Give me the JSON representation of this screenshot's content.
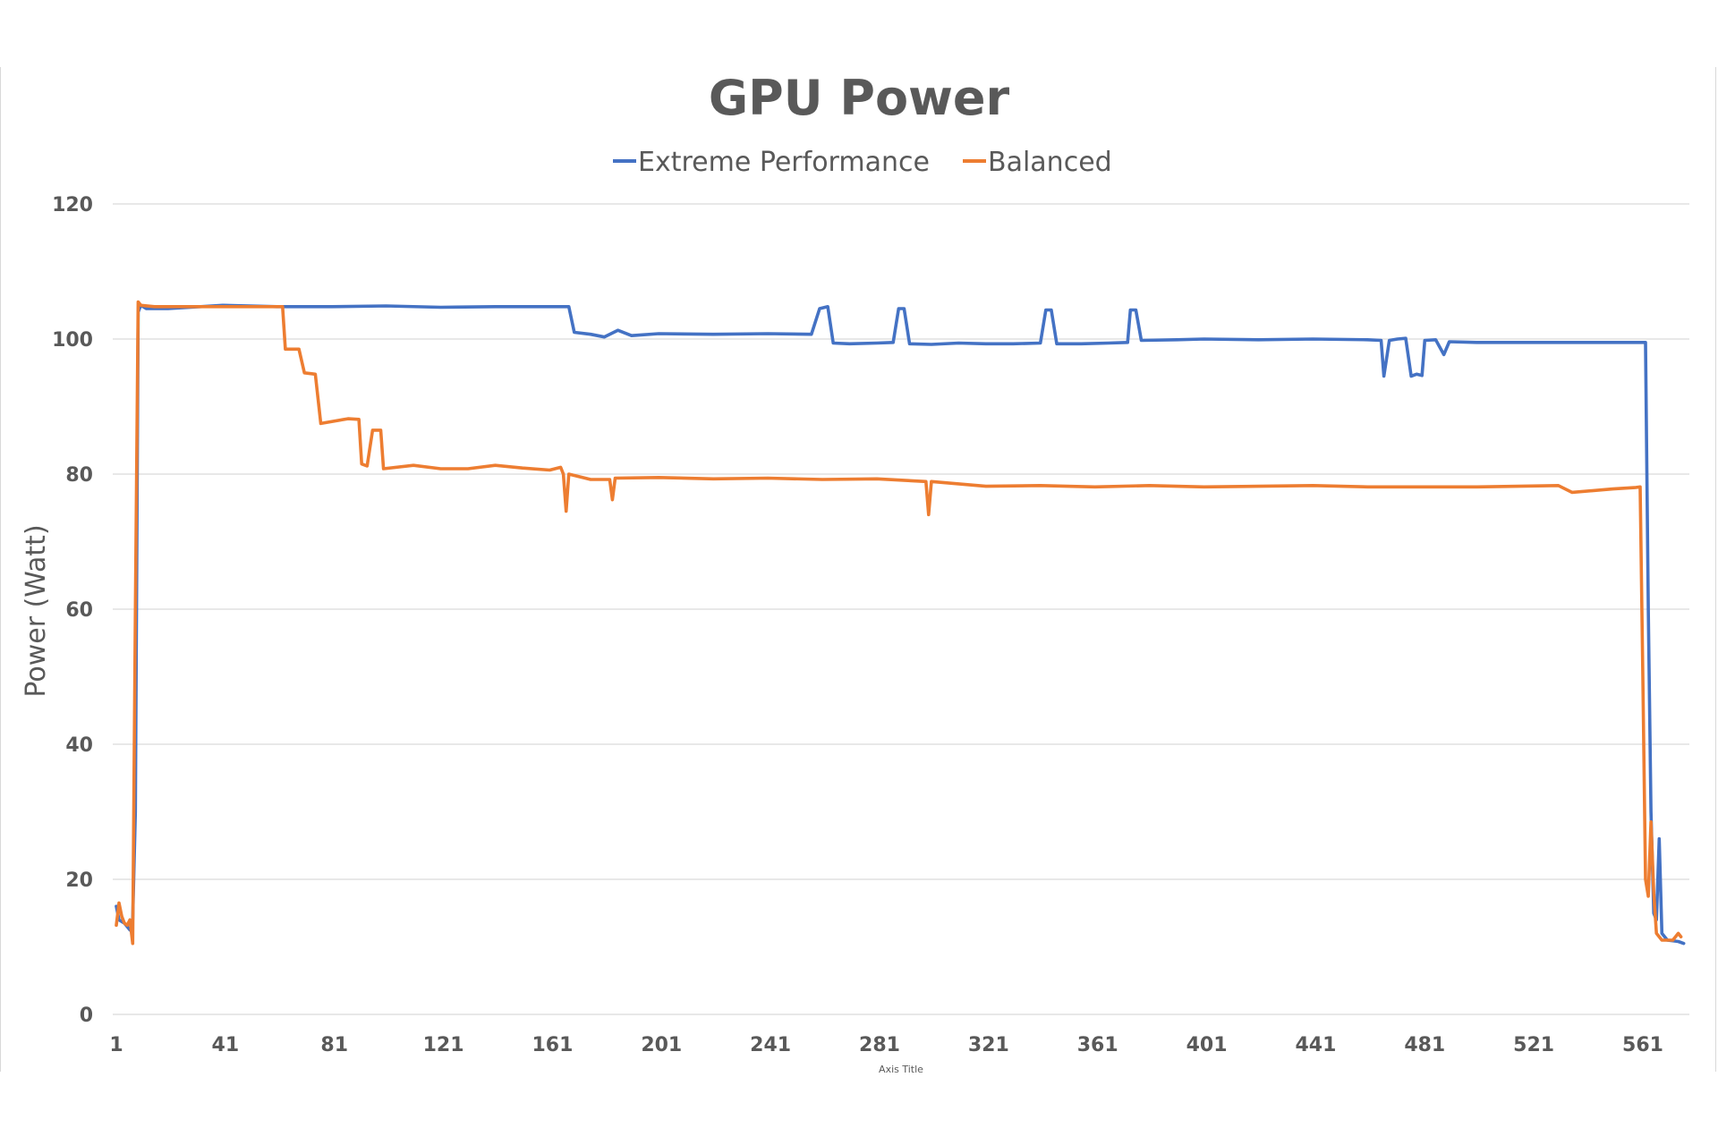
{
  "chart_data": {
    "type": "line",
    "title": "GPU Power",
    "xlabel": "Axis Title",
    "ylabel": "Power (Watt)",
    "ylim": [
      0,
      120
    ],
    "xlim": [
      1,
      576
    ],
    "y_ticks": [
      "0",
      "20",
      "40",
      "60",
      "80",
      "100",
      "120"
    ],
    "x_ticks": [
      "1",
      "41",
      "81",
      "121",
      "161",
      "201",
      "241",
      "281",
      "321",
      "361",
      "401",
      "441",
      "481",
      "521",
      "561"
    ],
    "grid": true,
    "legend_position": "top",
    "series": [
      {
        "name": "Extreme Performance",
        "color": "#4472c4",
        "points": [
          [
            1,
            16
          ],
          [
            2,
            14
          ],
          [
            4,
            13.5
          ],
          [
            6,
            12.5
          ],
          [
            7,
            14
          ],
          [
            8,
            30
          ],
          [
            9,
            104
          ],
          [
            10,
            105
          ],
          [
            12,
            104.5
          ],
          [
            20,
            104.5
          ],
          [
            40,
            105
          ],
          [
            60,
            104.8
          ],
          [
            80,
            104.8
          ],
          [
            100,
            104.9
          ],
          [
            120,
            104.7
          ],
          [
            140,
            104.8
          ],
          [
            160,
            104.8
          ],
          [
            167,
            104.8
          ],
          [
            169,
            101
          ],
          [
            175,
            100.7
          ],
          [
            180,
            100.3
          ],
          [
            185,
            101.3
          ],
          [
            190,
            100.5
          ],
          [
            200,
            100.8
          ],
          [
            220,
            100.7
          ],
          [
            240,
            100.8
          ],
          [
            256,
            100.7
          ],
          [
            259,
            104.5
          ],
          [
            262,
            104.8
          ],
          [
            264,
            99.4
          ],
          [
            270,
            99.3
          ],
          [
            280,
            99.4
          ],
          [
            286,
            99.5
          ],
          [
            288,
            104.5
          ],
          [
            290,
            104.5
          ],
          [
            292,
            99.3
          ],
          [
            300,
            99.2
          ],
          [
            310,
            99.4
          ],
          [
            320,
            99.3
          ],
          [
            330,
            99.3
          ],
          [
            340,
            99.4
          ],
          [
            342,
            104.3
          ],
          [
            344,
            104.3
          ],
          [
            346,
            99.3
          ],
          [
            355,
            99.3
          ],
          [
            365,
            99.4
          ],
          [
            372,
            99.5
          ],
          [
            373,
            104.3
          ],
          [
            375,
            104.3
          ],
          [
            377,
            99.8
          ],
          [
            390,
            99.9
          ],
          [
            400,
            100
          ],
          [
            420,
            99.9
          ],
          [
            440,
            100
          ],
          [
            460,
            99.9
          ],
          [
            465,
            99.8
          ],
          [
            466,
            94.5
          ],
          [
            468,
            99.8
          ],
          [
            471,
            100
          ],
          [
            474,
            100.1
          ],
          [
            476,
            94.5
          ],
          [
            478,
            94.8
          ],
          [
            480,
            94.6
          ],
          [
            481,
            99.8
          ],
          [
            485,
            99.9
          ],
          [
            488,
            97.7
          ],
          [
            490,
            99.6
          ],
          [
            500,
            99.5
          ],
          [
            520,
            99.5
          ],
          [
            540,
            99.5
          ],
          [
            560,
            99.5
          ],
          [
            562,
            99.5
          ],
          [
            563,
            60
          ],
          [
            564,
            30
          ],
          [
            565,
            15
          ],
          [
            566,
            14
          ],
          [
            567,
            26
          ],
          [
            568,
            12
          ],
          [
            570,
            11
          ],
          [
            574,
            10.8
          ],
          [
            576,
            10.5
          ]
        ]
      },
      {
        "name": "Balanced",
        "color": "#ed7d31",
        "points": [
          [
            1,
            13.2
          ],
          [
            2,
            16.5
          ],
          [
            3,
            14.5
          ],
          [
            4,
            13.5
          ],
          [
            5,
            13.2
          ],
          [
            6,
            14
          ],
          [
            7,
            10.5
          ],
          [
            8,
            60
          ],
          [
            9,
            105.5
          ],
          [
            10,
            105
          ],
          [
            15,
            104.8
          ],
          [
            20,
            104.8
          ],
          [
            40,
            104.8
          ],
          [
            60,
            104.8
          ],
          [
            62,
            104.8
          ],
          [
            63,
            98.5
          ],
          [
            68,
            98.5
          ],
          [
            70,
            95
          ],
          [
            74,
            94.8
          ],
          [
            76,
            87.5
          ],
          [
            86,
            88.2
          ],
          [
            90,
            88.1
          ],
          [
            91,
            81.5
          ],
          [
            93,
            81.2
          ],
          [
            95,
            86.5
          ],
          [
            98,
            86.5
          ],
          [
            99,
            80.8
          ],
          [
            110,
            81.3
          ],
          [
            120,
            80.8
          ],
          [
            130,
            80.8
          ],
          [
            140,
            81.3
          ],
          [
            150,
            80.9
          ],
          [
            160,
            80.6
          ],
          [
            164,
            81
          ],
          [
            165,
            80
          ],
          [
            166,
            74.5
          ],
          [
            167,
            80
          ],
          [
            175,
            79.2
          ],
          [
            182,
            79.2
          ],
          [
            183,
            76.2
          ],
          [
            184,
            79.4
          ],
          [
            200,
            79.5
          ],
          [
            220,
            79.3
          ],
          [
            240,
            79.4
          ],
          [
            260,
            79.2
          ],
          [
            280,
            79.3
          ],
          [
            298,
            78.9
          ],
          [
            299,
            74
          ],
          [
            300,
            78.9
          ],
          [
            320,
            78.2
          ],
          [
            340,
            78.3
          ],
          [
            360,
            78.1
          ],
          [
            380,
            78.3
          ],
          [
            400,
            78.1
          ],
          [
            420,
            78.2
          ],
          [
            440,
            78.3
          ],
          [
            460,
            78.1
          ],
          [
            480,
            78.1
          ],
          [
            500,
            78.1
          ],
          [
            530,
            78.3
          ],
          [
            535,
            77.3
          ],
          [
            550,
            77.8
          ],
          [
            558,
            78
          ],
          [
            560,
            78.1
          ],
          [
            561,
            50
          ],
          [
            562,
            20
          ],
          [
            563,
            17.5
          ],
          [
            564,
            28.5
          ],
          [
            565,
            18
          ],
          [
            566,
            12
          ],
          [
            568,
            11
          ],
          [
            572,
            11
          ],
          [
            574,
            12
          ],
          [
            575,
            11.5
          ]
        ]
      }
    ]
  }
}
